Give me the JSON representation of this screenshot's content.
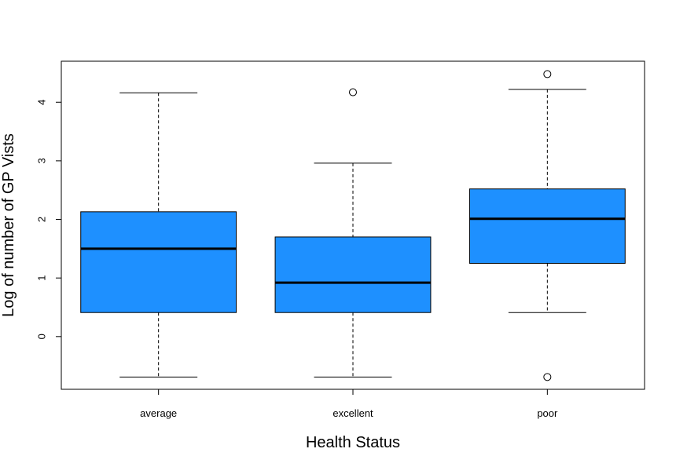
{
  "chart_data": {
    "type": "boxplot",
    "title": "",
    "xlabel": "Health Status",
    "ylabel": "Log of number of GP Vists",
    "ylim": [
      -0.9,
      4.7
    ],
    "yticks": [
      0,
      1,
      2,
      3,
      4
    ],
    "grid": false,
    "legend": "none",
    "box_color": "#1E90FF",
    "categories": [
      "average",
      "excellent",
      "poor"
    ],
    "boxes": [
      {
        "category": "average",
        "whisker_low": -0.69,
        "q1": 0.41,
        "median": 1.5,
        "q3": 2.13,
        "whisker_high": 4.16,
        "outliers": []
      },
      {
        "category": "excellent",
        "whisker_low": -0.69,
        "q1": 0.41,
        "median": 0.92,
        "q3": 1.7,
        "whisker_high": 2.96,
        "outliers": [
          4.17
        ]
      },
      {
        "category": "poor",
        "whisker_low": 0.41,
        "q1": 1.25,
        "median": 2.01,
        "q3": 2.52,
        "whisker_high": 4.22,
        "outliers": [
          4.48,
          -0.69
        ]
      }
    ]
  }
}
